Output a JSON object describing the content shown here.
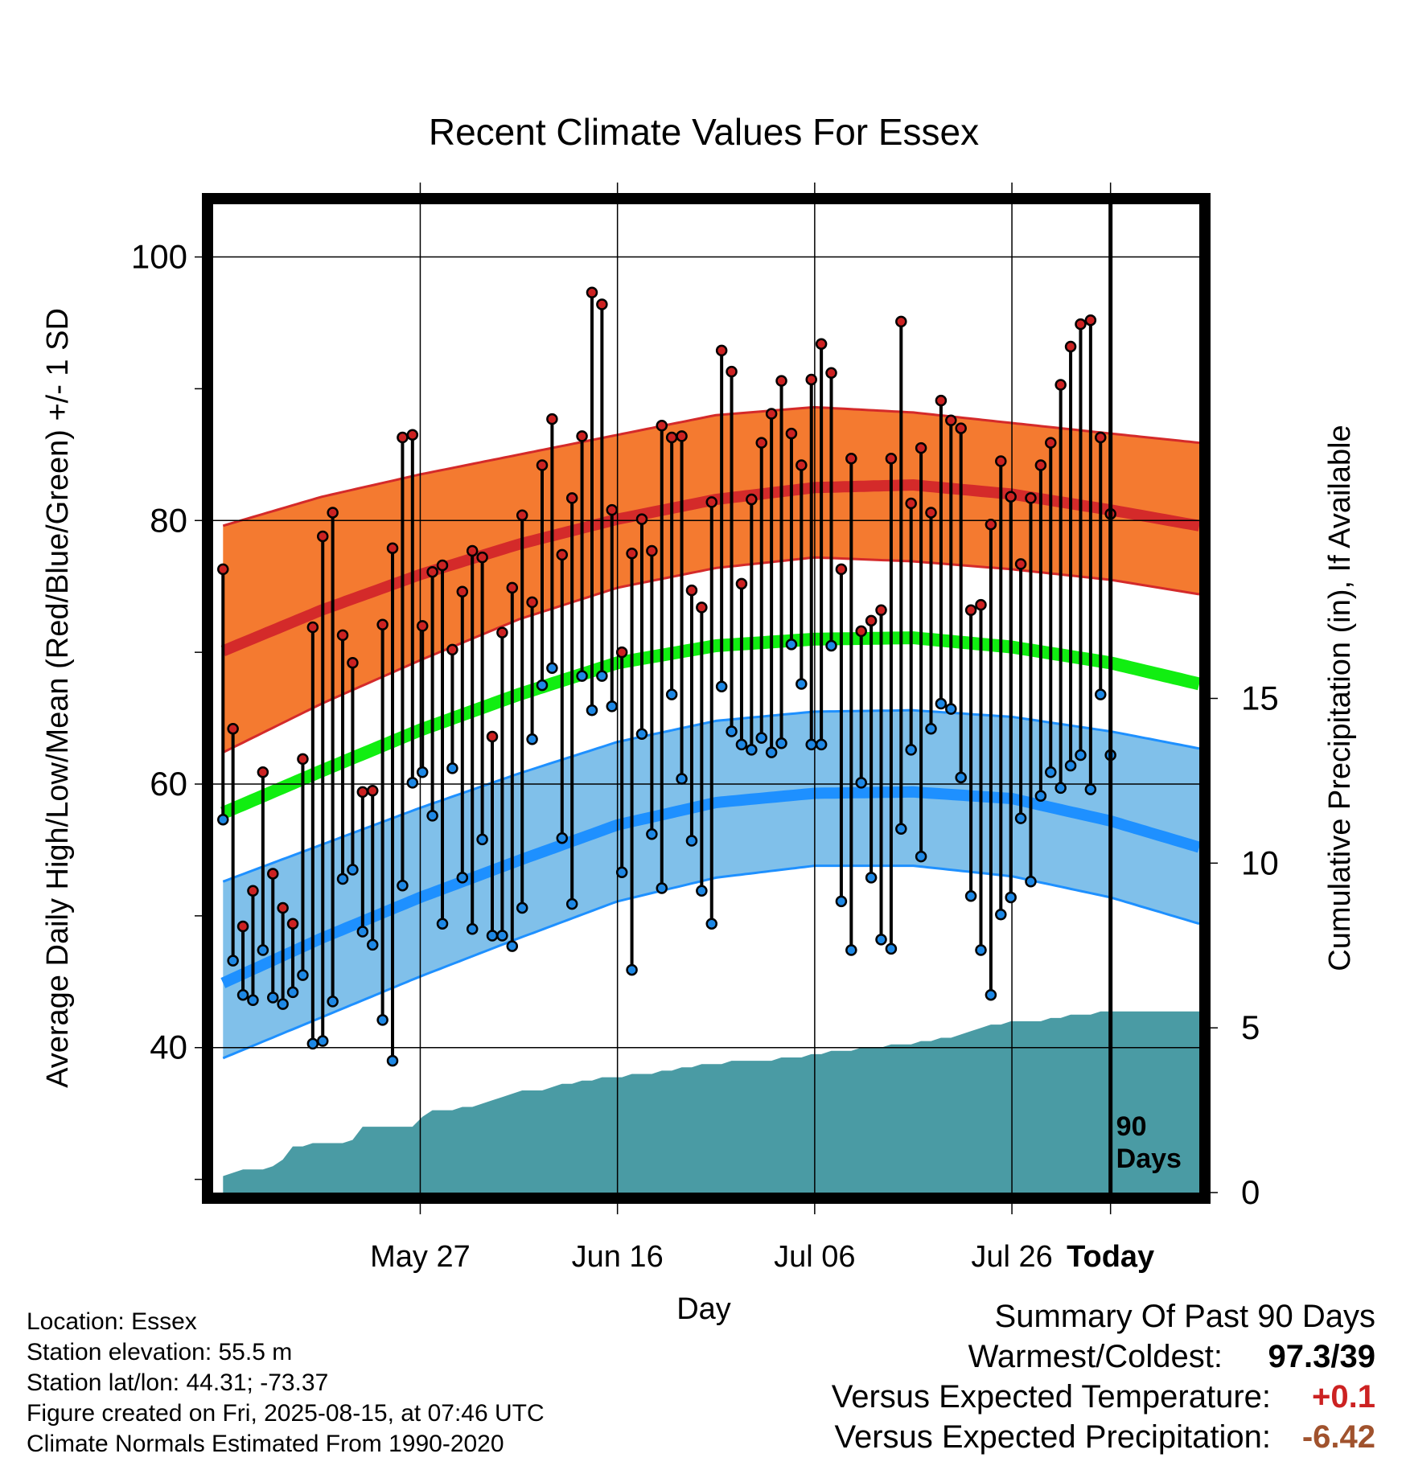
{
  "chart_data": {
    "type": "line",
    "title": "Recent Climate Values For Essex",
    "xlabel": "Day",
    "ylabel_left": "Average Daily High/Low/Mean (Red/Blue/Green) +/- 1 SD",
    "ylabel_right": "Cumulative Precipitation (in), If Available",
    "x_tick_labels": [
      "May 27",
      "Jun 16",
      "Jul 06",
      "Jul 26",
      "Today"
    ],
    "y_ticks_left": [
      40,
      60,
      80,
      100
    ],
    "y_ticks_right": [
      0,
      5,
      10,
      15
    ],
    "ylim_left": [
      29,
      104
    ],
    "ylim_right": [
      0,
      30
    ],
    "days_marker_label": [
      "90",
      "Days"
    ],
    "grid": true,
    "day_range": [
      -91,
      9
    ],
    "normals": {
      "days": [
        -90,
        -80,
        -70,
        -60,
        -50,
        -40,
        -30,
        -20,
        -10,
        0,
        9
      ],
      "high_mean": [
        70.1,
        73.2,
        75.9,
        78.2,
        80.1,
        81.6,
        82.5,
        82.7,
        82.0,
        80.8,
        79.6
      ],
      "high_upper": [
        79.6,
        81.8,
        83.5,
        85.0,
        86.5,
        88.0,
        88.6,
        88.2,
        87.4,
        86.6,
        85.9
      ],
      "high_lower": [
        62.4,
        66.1,
        69.4,
        72.5,
        74.9,
        76.4,
        77.2,
        76.9,
        76.3,
        75.5,
        74.4
      ],
      "low_mean": [
        44.9,
        48.3,
        51.4,
        54.2,
        56.9,
        58.6,
        59.3,
        59.4,
        58.9,
        57.2,
        55.2
      ],
      "low_upper": [
        52.6,
        55.4,
        58.2,
        60.8,
        63.2,
        64.8,
        65.5,
        65.6,
        65.1,
        64.0,
        62.7
      ],
      "low_lower": [
        39.2,
        42.3,
        45.4,
        48.3,
        51.1,
        52.9,
        53.8,
        53.8,
        53.0,
        51.4,
        49.4
      ],
      "avg_mean": [
        57.8,
        61.0,
        64.1,
        66.8,
        69.2,
        70.5,
        71.0,
        71.1,
        70.4,
        69.2,
        67.6
      ]
    },
    "series": [
      {
        "name": "High",
        "color": "#cc2222",
        "values": [
          76.3,
          64.2,
          49.2,
          51.9,
          60.9,
          53.2,
          50.6,
          49.4,
          61.9,
          71.9,
          78.8,
          80.6,
          71.3,
          69.2,
          59.4,
          59.5,
          72.1,
          77.9,
          86.3,
          86.5,
          72.0,
          76.1,
          76.6,
          70.2,
          74.6,
          77.7,
          77.2,
          63.6,
          71.5,
          74.9,
          80.4,
          73.8,
          84.2,
          87.7,
          77.4,
          81.7,
          86.4,
          97.3,
          96.4,
          80.8,
          70.0,
          77.5,
          80.1,
          77.7,
          87.2,
          86.3,
          86.4,
          74.7,
          73.4,
          81.4,
          92.9,
          91.3,
          75.2,
          81.6,
          85.9,
          88.1,
          90.6,
          86.6,
          84.2,
          90.7,
          93.4,
          91.2,
          76.3,
          84.7,
          71.6,
          72.4,
          73.2,
          84.7,
          95.1,
          81.3,
          85.5,
          80.6,
          89.1,
          87.6,
          87.0,
          73.2,
          73.6,
          79.7,
          84.5,
          81.8,
          76.7,
          81.7,
          84.2,
          85.9,
          90.3,
          93.2,
          94.9,
          95.2,
          86.3,
          80.5
        ]
      },
      {
        "name": "Low",
        "color": "#2288dd",
        "values": [
          57.3,
          46.6,
          44.0,
          43.6,
          47.4,
          43.8,
          43.3,
          44.2,
          45.5,
          40.3,
          40.5,
          43.5,
          52.8,
          53.5,
          48.8,
          47.8,
          42.1,
          39.0,
          52.3,
          60.1,
          60.9,
          57.6,
          49.4,
          61.2,
          52.9,
          49.0,
          55.8,
          48.5,
          48.5,
          47.7,
          50.6,
          63.4,
          67.5,
          68.8,
          55.9,
          50.9,
          68.2,
          65.6,
          68.2,
          65.9,
          53.3,
          45.9,
          63.8,
          56.2,
          52.1,
          66.8,
          60.4,
          55.7,
          51.9,
          49.4,
          67.4,
          64.0,
          63.0,
          62.6,
          63.5,
          62.4,
          63.1,
          70.6,
          67.6,
          63.0,
          63.0,
          70.5,
          51.1,
          47.4,
          60.1,
          52.9,
          48.2,
          47.5,
          56.6,
          62.6,
          54.5,
          64.2,
          66.1,
          65.7,
          60.5,
          51.5,
          47.4,
          44.0,
          50.1,
          51.4,
          57.4,
          52.6,
          59.1,
          60.9,
          59.7,
          61.4,
          62.2,
          59.6,
          66.8,
          62.2
        ]
      },
      {
        "name": "Cumulative Precipitation",
        "color": "#4a9ba4",
        "values": [
          0.5,
          0.6,
          0.7,
          0.7,
          0.7,
          0.8,
          1.0,
          1.4,
          1.4,
          1.5,
          1.5,
          1.5,
          1.5,
          1.6,
          2.0,
          2.0,
          2.0,
          2.0,
          2.0,
          2.0,
          2.3,
          2.5,
          2.5,
          2.5,
          2.6,
          2.6,
          2.7,
          2.8,
          2.9,
          3.0,
          3.1,
          3.1,
          3.1,
          3.2,
          3.3,
          3.3,
          3.4,
          3.4,
          3.5,
          3.5,
          3.5,
          3.6,
          3.6,
          3.6,
          3.7,
          3.7,
          3.8,
          3.8,
          3.9,
          3.9,
          3.9,
          4.0,
          4.0,
          4.0,
          4.0,
          4.0,
          4.1,
          4.1,
          4.1,
          4.2,
          4.2,
          4.3,
          4.3,
          4.3,
          4.4,
          4.4,
          4.4,
          4.5,
          4.5,
          4.5,
          4.6,
          4.6,
          4.7,
          4.7,
          4.8,
          4.9,
          5.0,
          5.1,
          5.1,
          5.2,
          5.2,
          5.2,
          5.2,
          5.3,
          5.3,
          5.4,
          5.4,
          5.4,
          5.5,
          5.5
        ]
      }
    ]
  },
  "metadata": {
    "lines": [
      "Location: Essex",
      "Station elevation: 55.5 m",
      "Station lat/lon: 44.31; -73.37",
      "Figure created on Fri, 2025-08-15, at 07:46 UTC",
      "Climate Normals Estimated From 1990-2020"
    ]
  },
  "summary": {
    "title": "Summary Of Past 90 Days",
    "warmest_coldest_label": "Warmest/Coldest:",
    "warmest_coldest_value": "97.3/39",
    "temp_label": "Versus Expected Temperature:",
    "temp_value": "+0.1",
    "temp_color": "#cc2222",
    "precip_label": "Versus Expected Precipitation:",
    "precip_value": "-6.42",
    "precip_color": "#a0522d"
  },
  "colors": {
    "high_band": "#f47a30",
    "high_line": "#d42a2a",
    "low_band": "#80c0ea",
    "low_line": "#1e90ff",
    "mean_line": "#11ee11",
    "precip_fill": "#4a9ba4",
    "high_marker": "#cc2222",
    "low_marker": "#1e88e5"
  }
}
